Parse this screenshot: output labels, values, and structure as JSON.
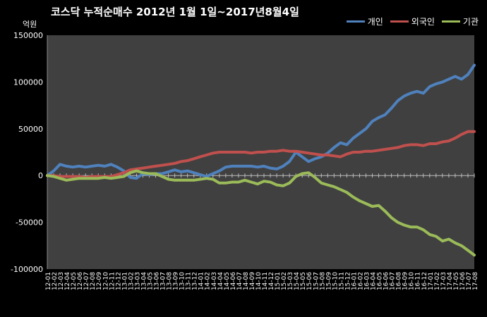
{
  "chart_data": {
    "type": "line",
    "title": "코스닥  누적순매수 2012년 1월 1일~2017년8월4일",
    "unit_label": "억원",
    "ylim": [
      -100000,
      150000
    ],
    "yticks": [
      150000,
      100000,
      50000,
      0,
      -50000,
      -100000
    ],
    "grid": false,
    "legend_position": "top-right",
    "x_categories": [
      "12-01",
      "12-02",
      "12-03",
      "12-04",
      "12-05",
      "12-06",
      "12-07",
      "12-08",
      "12-09",
      "12-10",
      "12-11",
      "12-12",
      "13-01",
      "13-02",
      "13-03",
      "13-04",
      "13-05",
      "13-06",
      "13-07",
      "13-08",
      "13-09",
      "13-10",
      "13-11",
      "13-12",
      "14-01",
      "14-02",
      "14-03",
      "14-04",
      "14-05",
      "14-06",
      "14-07",
      "14-08",
      "14-09",
      "14-10",
      "14-11",
      "14-12",
      "15-01",
      "15-02",
      "15-03",
      "15-04",
      "15-05",
      "15-06",
      "15-07",
      "15-08",
      "15-09",
      "15-10",
      "15-11",
      "15-12",
      "16-01",
      "16-02",
      "16-03",
      "16-04",
      "16-05",
      "16-06",
      "16-07",
      "16-08",
      "16-09",
      "16-10",
      "16-11",
      "16-12",
      "17-01",
      "17-02",
      "17-03",
      "17-04",
      "17-05",
      "17-06",
      "17-07",
      "17-08"
    ],
    "series": [
      {
        "name": "개인",
        "color": "#4f81bd",
        "values": [
          0,
          5000,
          12000,
          10000,
          9000,
          10000,
          9000,
          10000,
          11000,
          10000,
          12000,
          9000,
          5000,
          -2000,
          -3000,
          2000,
          1000,
          2000,
          2000,
          4000,
          6000,
          4000,
          5000,
          3000,
          1000,
          -1000,
          2000,
          5000,
          9000,
          10000,
          10000,
          10000,
          10000,
          9000,
          10000,
          8000,
          7000,
          10000,
          15000,
          25000,
          20000,
          15000,
          18000,
          20000,
          24000,
          30000,
          35000,
          33000,
          40000,
          45000,
          50000,
          58000,
          62000,
          65000,
          72000,
          80000,
          85000,
          88000,
          90000,
          88000,
          95000,
          98000,
          100000,
          103000,
          106000,
          103000,
          108000,
          118000
        ]
      },
      {
        "name": "외국인",
        "color": "#c0504d",
        "values": [
          0,
          0,
          -1000,
          -1000,
          -1000,
          -1000,
          -2000,
          -1000,
          -1000,
          -1000,
          -1000,
          1000,
          3000,
          6000,
          7000,
          8000,
          9000,
          10000,
          11000,
          12000,
          13000,
          15000,
          16000,
          18000,
          20000,
          22000,
          24000,
          25000,
          25000,
          25000,
          25000,
          25000,
          24000,
          25000,
          25000,
          26000,
          26000,
          27000,
          26000,
          26000,
          25000,
          24000,
          23000,
          22000,
          22000,
          21000,
          20000,
          23000,
          25000,
          25000,
          26000,
          26000,
          27000,
          28000,
          29000,
          30000,
          32000,
          33000,
          33000,
          32000,
          34000,
          34000,
          36000,
          37000,
          40000,
          44000,
          47000,
          47000
        ]
      },
      {
        "name": "기관",
        "color": "#9bbb59",
        "values": [
          0,
          -1000,
          -3000,
          -5000,
          -4000,
          -3000,
          -3000,
          -3000,
          -3000,
          -2000,
          -3000,
          -2000,
          -1000,
          3000,
          5000,
          3000,
          2000,
          2000,
          -1000,
          -4000,
          -5000,
          -5000,
          -5000,
          -5000,
          -4000,
          -3000,
          -4000,
          -8000,
          -8000,
          -7000,
          -7000,
          -5000,
          -7000,
          -9000,
          -6000,
          -7000,
          -10000,
          -11000,
          -8000,
          -1000,
          2000,
          3000,
          -2000,
          -8000,
          -10000,
          -12000,
          -15000,
          -18000,
          -23000,
          -27000,
          -30000,
          -33000,
          -32000,
          -38000,
          -45000,
          -50000,
          -53000,
          -55000,
          -55000,
          -58000,
          -63000,
          -65000,
          -70000,
          -68000,
          -72000,
          -75000,
          -80000,
          -85000
        ]
      }
    ]
  }
}
